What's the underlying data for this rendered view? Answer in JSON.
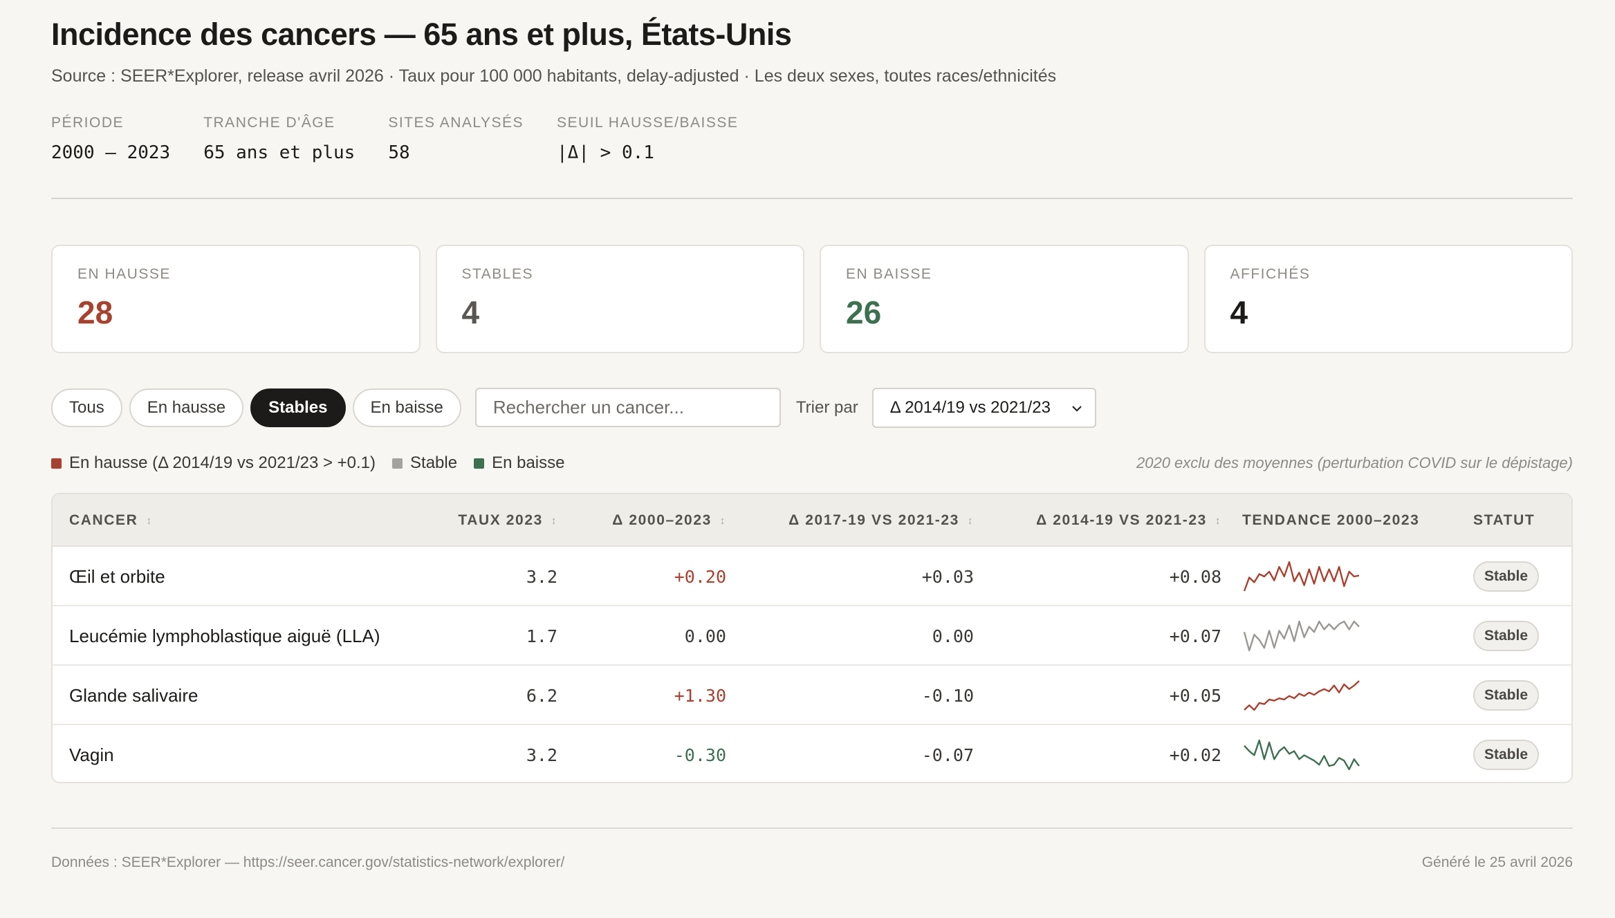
{
  "header": {
    "title": "Incidence des cancers — 65 ans et plus, États-Unis",
    "subtitle": "Source : SEER*Explorer, release avril 2026 · Taux pour 100 000 habitants, delay-adjusted · Les deux sexes, toutes races/ethnicités"
  },
  "meta": [
    {
      "label": "PÉRIODE",
      "value": "2000 – 2023"
    },
    {
      "label": "TRANCHE D'ÂGE",
      "value": "65 ans et plus"
    },
    {
      "label": "SITES ANALYSÉS",
      "value": "58"
    },
    {
      "label": "SEUIL HAUSSE/BAISSE",
      "value": "|Δ| > 0.1"
    }
  ],
  "cards": [
    {
      "label": "EN HAUSSE",
      "value": "28"
    },
    {
      "label": "STABLES",
      "value": "4"
    },
    {
      "label": "EN BAISSE",
      "value": "26"
    },
    {
      "label": "AFFICHÉS",
      "value": "4"
    }
  ],
  "filters": [
    {
      "label": "Tous",
      "active": false
    },
    {
      "label": "En hausse",
      "active": false
    },
    {
      "label": "Stables",
      "active": true
    },
    {
      "label": "En baisse",
      "active": false
    }
  ],
  "search": {
    "placeholder": "Rechercher un cancer...",
    "value": ""
  },
  "sort": {
    "label": "Trier par",
    "selected": "Δ 2014/19 vs 2021/23"
  },
  "legend": {
    "items": [
      {
        "label": "En hausse (Δ 2014/19 vs 2021/23 > +0.1)",
        "color": "#a8412f"
      },
      {
        "label": "Stable",
        "color": "#a5a29d"
      },
      {
        "label": "En baisse",
        "color": "#3d7050"
      }
    ],
    "note": "2020 exclu des moyennes (perturbation COVID sur le dépistage)"
  },
  "table": {
    "columns": {
      "cancer": "CANCER",
      "taux": "TAUX 2023",
      "delta": "Δ 2000–2023",
      "d17": "Δ 2017-19 VS 2021-23",
      "d14": "Δ 2014-19 VS 2021-23",
      "trend": "TENDANCE 2000–2023",
      "status": "STATUT"
    },
    "sort_indicator": "↕",
    "rows": [
      {
        "name": "Œil et orbite",
        "taux": "3.2",
        "delta": "+0.20",
        "d17": "+0.03",
        "d14": "+0.08",
        "status": "Stable",
        "trend_color": "#a8412f",
        "delta_dir": "up",
        "trend": [
          3.0,
          3.28,
          3.18,
          3.35,
          3.3,
          3.4,
          3.22,
          3.5,
          3.3,
          3.6,
          3.2,
          3.38,
          3.12,
          3.45,
          3.15,
          3.5,
          3.2,
          3.45,
          3.2,
          3.5,
          3.1,
          3.4,
          3.3,
          3.32
        ]
      },
      {
        "name": "Leucémie lymphoblastique aiguë (LLA)",
        "taux": "1.7",
        "delta": "0.00",
        "d17": "0.00",
        "d14": "+0.07",
        "status": "Stable",
        "trend_color": "#9a9792",
        "delta_dir": "neutral",
        "trend": [
          1.62,
          1.48,
          1.6,
          1.56,
          1.5,
          1.63,
          1.5,
          1.63,
          1.57,
          1.67,
          1.55,
          1.7,
          1.58,
          1.66,
          1.62,
          1.7,
          1.64,
          1.68,
          1.64,
          1.68,
          1.7,
          1.64,
          1.7,
          1.66
        ]
      },
      {
        "name": "Glande salivaire",
        "taux": "6.2",
        "delta": "+1.30",
        "d17": "-0.10",
        "d14": "+0.05",
        "status": "Stable",
        "trend_color": "#a8412f",
        "delta_dir": "up",
        "trend": [
          4.9,
          5.1,
          4.9,
          5.2,
          5.15,
          5.35,
          5.3,
          5.4,
          5.35,
          5.5,
          5.4,
          5.6,
          5.5,
          5.65,
          5.55,
          5.7,
          5.8,
          5.7,
          5.95,
          5.65,
          6.0,
          5.8,
          5.95,
          6.15
        ]
      },
      {
        "name": "Vagin",
        "taux": "3.2",
        "delta": "-0.30",
        "d17": "-0.07",
        "d14": "+0.02",
        "status": "Stable",
        "trend_color": "#3d7050",
        "delta_dir": "down",
        "trend": [
          3.5,
          3.42,
          3.36,
          3.58,
          3.3,
          3.55,
          3.3,
          3.42,
          3.48,
          3.38,
          3.42,
          3.3,
          3.36,
          3.32,
          3.28,
          3.22,
          3.35,
          3.2,
          3.22,
          3.32,
          3.28,
          3.15,
          3.3,
          3.2
        ]
      }
    ]
  },
  "footer": {
    "left": "Données : SEER*Explorer — https://seer.cancer.gov/statistics-network/explorer/",
    "right": "Généré le 25 avril 2026"
  }
}
